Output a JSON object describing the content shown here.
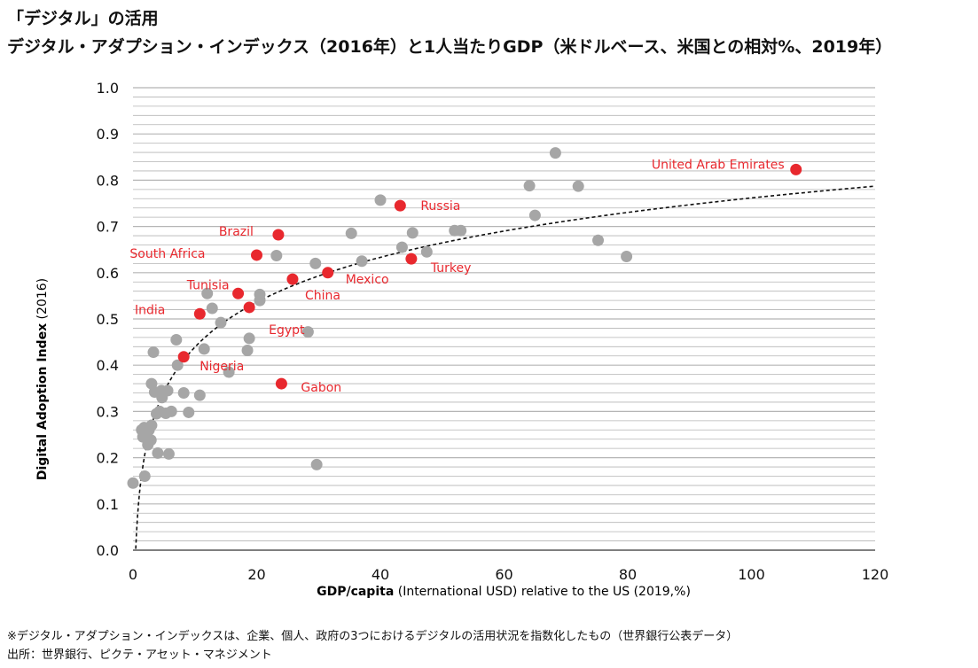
{
  "header": {
    "title": "「デジタル」の活用",
    "subtitle": "デジタル・アダプション・インデックス（2016年）と1人当たりGDP（米ドルベース、米国との相対%、2019年）"
  },
  "footer": {
    "note": "※デジタル・アダプション・インデックスは、企業、個人、政府の3つにおけるデジタルの活用状況を指数化したもの（世界銀行公表データ）",
    "source": "出所：世界銀行、ピクテ・アセット・マネジメント"
  },
  "chart_data": {
    "type": "scatter",
    "xlabel_bold": "GDP/capita",
    "xlabel_rest": " (International USD) relative to the US (2019,%)",
    "ylabel_bold": "Digital Adoption Index",
    "ylabel_rest": " (2016)",
    "xlim": [
      0,
      120
    ],
    "ylim": [
      0,
      1
    ],
    "x_ticks": [
      "0",
      "20",
      "40",
      "60",
      "80",
      "100",
      "120"
    ],
    "y_ticks": [
      "0.0",
      "0.1",
      "0.2",
      "0.3",
      "0.4",
      "0.5",
      "0.6",
      "0.7",
      "0.8",
      "0.9",
      "1.0"
    ],
    "grid": "horizontal",
    "colors": {
      "highlight": "#e8282e",
      "other": "#a6a6a6",
      "trend": "#111111",
      "grid": "#b5b5b5"
    },
    "trendline": {
      "type": "logarithmic",
      "style": "dashed"
    },
    "highlighted": [
      {
        "label": "United Arab Emirates",
        "x": 107.2,
        "y": 0.823
      },
      {
        "label": "Russia",
        "x": 43.2,
        "y": 0.745
      },
      {
        "label": "Brazil",
        "x": 23.5,
        "y": 0.682
      },
      {
        "label": "South Africa",
        "x": 20.0,
        "y": 0.638
      },
      {
        "label": "Turkey",
        "x": 45.0,
        "y": 0.63
      },
      {
        "label": "Mexico",
        "x": 31.5,
        "y": 0.6
      },
      {
        "label": "China",
        "x": 25.8,
        "y": 0.586
      },
      {
        "label": "Tunisia",
        "x": 17.0,
        "y": 0.555
      },
      {
        "label": "Egypt",
        "x": 18.8,
        "y": 0.525
      },
      {
        "label": "India",
        "x": 10.8,
        "y": 0.511
      },
      {
        "label": "Nigeria",
        "x": 8.2,
        "y": 0.418
      },
      {
        "label": "Gabon",
        "x": 24.0,
        "y": 0.36
      }
    ],
    "others": [
      [
        68.3,
        0.859
      ],
      [
        64.1,
        0.788
      ],
      [
        72.0,
        0.787
      ],
      [
        65.0,
        0.724
      ],
      [
        75.2,
        0.67
      ],
      [
        79.8,
        0.635
      ],
      [
        40.0,
        0.757
      ],
      [
        35.3,
        0.685
      ],
      [
        37.0,
        0.625
      ],
      [
        45.2,
        0.686
      ],
      [
        43.5,
        0.655
      ],
      [
        47.5,
        0.645
      ],
      [
        52.0,
        0.691
      ],
      [
        53.0,
        0.691
      ],
      [
        23.2,
        0.637
      ],
      [
        29.5,
        0.62
      ],
      [
        28.3,
        0.472
      ],
      [
        29.7,
        0.185
      ],
      [
        20.5,
        0.553
      ],
      [
        20.5,
        0.54
      ],
      [
        18.8,
        0.458
      ],
      [
        18.5,
        0.432
      ],
      [
        15.5,
        0.385
      ],
      [
        14.2,
        0.492
      ],
      [
        12.8,
        0.523
      ],
      [
        12.0,
        0.555
      ],
      [
        11.5,
        0.435
      ],
      [
        10.8,
        0.335
      ],
      [
        9.0,
        0.298
      ],
      [
        8.2,
        0.34
      ],
      [
        7.2,
        0.4
      ],
      [
        7.0,
        0.455
      ],
      [
        6.2,
        0.3
      ],
      [
        5.6,
        0.345
      ],
      [
        5.3,
        0.296
      ],
      [
        5.8,
        0.208
      ],
      [
        4.7,
        0.33
      ],
      [
        4.6,
        0.345
      ],
      [
        4.3,
        0.3
      ],
      [
        4.0,
        0.21
      ],
      [
        3.8,
        0.295
      ],
      [
        3.5,
        0.342
      ],
      [
        3.3,
        0.428
      ],
      [
        3.0,
        0.36
      ],
      [
        3.0,
        0.27
      ],
      [
        2.9,
        0.238
      ],
      [
        2.6,
        0.26
      ],
      [
        2.4,
        0.228
      ],
      [
        2.1,
        0.252
      ],
      [
        1.8,
        0.265
      ],
      [
        1.4,
        0.26
      ],
      [
        1.6,
        0.245
      ],
      [
        1.9,
        0.16
      ],
      [
        0.0,
        0.145
      ]
    ]
  }
}
